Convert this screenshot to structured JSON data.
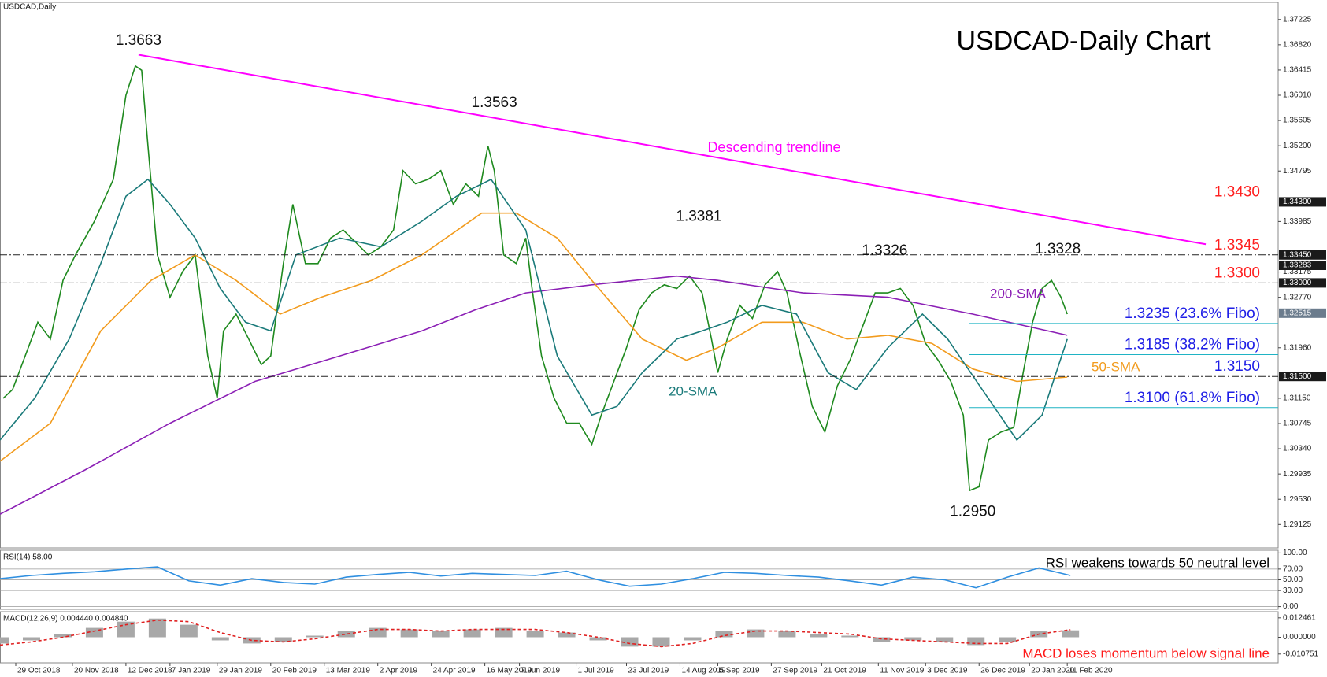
{
  "chart_data": [
    {
      "type": "line",
      "title": "USDCAD-Daily Chart",
      "subtitle": "USDCAD,Daily",
      "xlim": [
        0,
        406
      ],
      "ylim": [
        1.2875,
        1.375
      ],
      "xticks": [
        {
          "value": 5,
          "label": "29 Oct 2018"
        },
        {
          "value": 23,
          "label": "20 Nov 2018"
        },
        {
          "value": 40,
          "label": "12 Dec 2018"
        },
        {
          "value": 54,
          "label": "7 Jan 2019"
        },
        {
          "value": 69,
          "label": "29 Jan 2019"
        },
        {
          "value": 86,
          "label": "20 Feb 2019"
        },
        {
          "value": 103,
          "label": "13 Mar 2019"
        },
        {
          "value": 120,
          "label": "2 Apr 2019"
        },
        {
          "value": 137,
          "label": "24 Apr 2019"
        },
        {
          "value": 154,
          "label": "16 May 2019"
        },
        {
          "value": 165,
          "label": "7 Jun 2019"
        },
        {
          "value": 183,
          "label": "1 Jul 2019"
        },
        {
          "value": 199,
          "label": "23 Jul 2019"
        },
        {
          "value": 216,
          "label": "14 Aug 2019"
        },
        {
          "value": 228,
          "label": "5 Sep 2019"
        },
        {
          "value": 245,
          "label": "27 Sep 2019"
        },
        {
          "value": 261,
          "label": "21 Oct 2019"
        },
        {
          "value": 279,
          "label": "11 Nov 2019"
        },
        {
          "value": 294,
          "label": "3 Dec 2019"
        },
        {
          "value": 311,
          "label": "26 Dec 2019"
        },
        {
          "value": 327,
          "label": "20 Jan 2020"
        },
        {
          "value": 339,
          "label": "11 Feb 2020"
        }
      ],
      "yticks": [
        1.37225,
        {
          "value": 1.3682,
          "label": "1.36820"
        },
        1.36415,
        {
          "value": 1.3601,
          "label": "1.36010"
        },
        1.35605,
        {
          "value": 1.352,
          "label": "1.35200"
        },
        1.34795,
        1.33985,
        1.33175,
        {
          "value": 1.3277,
          "label": "1.32770"
        },
        {
          "value": 1.3196,
          "label": "1.31960"
        },
        {
          "value": 1.3115,
          "label": "1.31150"
        },
        1.30745,
        {
          "value": 1.3034,
          "label": "1.30340"
        },
        1.29935,
        {
          "value": 1.2953,
          "label": "1.29530"
        },
        1.29125
      ],
      "grid": false,
      "series": [
        {
          "color": "#1f8a1f",
          "x": [
            1,
            4,
            8,
            12,
            16,
            20,
            24,
            30,
            36,
            40,
            43,
            45,
            47,
            50,
            54,
            58,
            62,
            66,
            69,
            71,
            75,
            79,
            83,
            86,
            90,
            93,
            97,
            101,
            105,
            109,
            113,
            117,
            121,
            125,
            128,
            132,
            136,
            140,
            144,
            148,
            152,
            155,
            157,
            160,
            164,
            167,
            169,
            172,
            176,
            180,
            184,
            188,
            191,
            195,
            199,
            203,
            207,
            211,
            215,
            219,
            223,
            226,
            228,
            231,
            235,
            239,
            243,
            247,
            250,
            254,
            258,
            262,
            266,
            270,
            274,
            278,
            282,
            286,
            290,
            294,
            298,
            302,
            306,
            308,
            311,
            314,
            318,
            322,
            325,
            328,
            331,
            334,
            337,
            339
          ],
          "values": [
            1.3115,
            1.3129,
            1.3183,
            1.3237,
            1.321,
            1.3304,
            1.3345,
            1.3399,
            1.3466,
            1.3601,
            1.3648,
            1.3641,
            1.352,
            1.3345,
            1.3277,
            1.3318,
            1.3345,
            1.3183,
            1.3115,
            1.3223,
            1.325,
            1.321,
            1.3169,
            1.3183,
            1.3331,
            1.3426,
            1.3331,
            1.3331,
            1.3372,
            1.3385,
            1.3365,
            1.3345,
            1.3358,
            1.3385,
            1.348,
            1.3459,
            1.3466,
            1.348,
            1.3426,
            1.3459,
            1.3439,
            1.352,
            1.348,
            1.3345,
            1.3331,
            1.3372,
            1.3291,
            1.3183,
            1.3115,
            1.3075,
            1.3075,
            1.3041,
            1.3088,
            1.3142,
            1.3196,
            1.3257,
            1.3284,
            1.3297,
            1.3291,
            1.3311,
            1.3284,
            1.321,
            1.3156,
            1.321,
            1.3264,
            1.3243,
            1.3297,
            1.3318,
            1.3284,
            1.3189,
            1.3102,
            1.3061,
            1.3135,
            1.3176,
            1.323,
            1.3284,
            1.3284,
            1.3291,
            1.3264,
            1.3203,
            1.3176,
            1.3142,
            1.3088,
            1.2967,
            1.2973,
            1.3048,
            1.3061,
            1.3068,
            1.3156,
            1.3237,
            1.3291,
            1.3304,
            1.3277,
            1.325
          ]
        },
        {
          "name": "200-SMA",
          "color": "#8b1fb5",
          "x": [
            0,
            27,
            54,
            81,
            108,
            134,
            151,
            167,
            188,
            215,
            228,
            255,
            282,
            309,
            339
          ],
          "values": [
            1.2929,
            1.3,
            1.3075,
            1.3142,
            1.3183,
            1.3223,
            1.3257,
            1.3284,
            1.3297,
            1.3311,
            1.3304,
            1.3284,
            1.3277,
            1.325,
            1.3216
          ]
        },
        {
          "name": "50-SMA",
          "color": "#f29b1d",
          "x": [
            0,
            16,
            32,
            48,
            62,
            75,
            89,
            102,
            118,
            134,
            153,
            164,
            177,
            188,
            204,
            218,
            228,
            242,
            255,
            269,
            282,
            296,
            309,
            323,
            339
          ],
          "values": [
            1.3014,
            1.3075,
            1.3223,
            1.3304,
            1.3345,
            1.3304,
            1.325,
            1.3277,
            1.3304,
            1.3345,
            1.3412,
            1.3412,
            1.3372,
            1.3304,
            1.321,
            1.3176,
            1.3196,
            1.3237,
            1.3237,
            1.321,
            1.3216,
            1.3203,
            1.3162,
            1.3142,
            1.3149
          ]
        },
        {
          "name": "20-SMA",
          "color": "#1a7a7a",
          "x": [
            0,
            11,
            22,
            32,
            40,
            47,
            54,
            62,
            70,
            78,
            86,
            94,
            108,
            121,
            134,
            145,
            156,
            167,
            177,
            188,
            196,
            204,
            215,
            223,
            231,
            242,
            253,
            263,
            272,
            282,
            293,
            301,
            312,
            323,
            331,
            339
          ],
          "values": [
            1.3048,
            1.3115,
            1.321,
            1.3331,
            1.3439,
            1.3466,
            1.3426,
            1.3372,
            1.3291,
            1.3237,
            1.3223,
            1.3345,
            1.3372,
            1.3358,
            1.3399,
            1.3439,
            1.3466,
            1.3385,
            1.3183,
            1.3088,
            1.3102,
            1.3156,
            1.321,
            1.3223,
            1.3237,
            1.3264,
            1.325,
            1.3156,
            1.3129,
            1.3196,
            1.325,
            1.321,
            1.3129,
            1.3048,
            1.3088,
            1.321
          ]
        }
      ],
      "trendline": {
        "label": "Descending trendline",
        "color": "#ff00ff",
        "x": [
          44,
          383
        ],
        "values": [
          1.3666,
          1.3362
        ]
      },
      "levels": [
        {
          "value": 1.343,
          "label": "1.3430",
          "color": "#ff2020",
          "style": "dashdot"
        },
        {
          "value": 1.3345,
          "label": "1.3345",
          "color": "#ff2020",
          "style": "dashdot"
        },
        {
          "value": 1.33,
          "label": "1.3300",
          "color": "#ff2020",
          "style": "dashdot"
        },
        {
          "value": 1.3235,
          "label": "1.3235 (23.6% Fibo)",
          "color": "#1e1ee6",
          "style": "fibo"
        },
        {
          "value": 1.3185,
          "label": "1.3185 (38.2% Fibo)",
          "color": "#1e1ee6",
          "style": "fibo"
        },
        {
          "value": 1.315,
          "label": "1.3150",
          "color": "#1e1ee6",
          "style": "dashdot"
        },
        {
          "value": 1.31,
          "label": "1.3100 (61.8% Fibo)",
          "color": "#1e1ee6",
          "style": "fibo"
        }
      ],
      "axis_markers": [
        {
          "value": 1.343,
          "label": "1.34300"
        },
        {
          "value": 1.3345,
          "label": "1.33450"
        },
        1.33283,
        {
          "value": 1.33,
          "label": "1.33000"
        },
        {
          "value": 1.32515,
          "label": "1.32515",
          "color": "#6b7c8d"
        },
        {
          "value": 1.315,
          "label": "1.31500"
        }
      ],
      "peaks": [
        {
          "x": 44,
          "value": 1.3663
        },
        {
          "x": 157,
          "value": 1.3563
        },
        {
          "x": 222,
          "value": 1.3381
        },
        {
          "x": 281,
          "value": 1.3326
        },
        {
          "x": 336,
          "value": 1.3328
        },
        {
          "x": 309,
          "value": 1.295,
          "label": "1.2950"
        }
      ]
    },
    {
      "type": "line",
      "title": "RSI(14) 58.00",
      "annotation": "RSI weakens towards 50 neutral level",
      "xlim": [
        0,
        406
      ],
      "ylim": [
        -5,
        105
      ],
      "grid": true,
      "yticks": [
        {
          "value": 100,
          "label": "100.00"
        },
        {
          "value": 70,
          "label": "70.00"
        },
        {
          "value": 50,
          "label": "50.00"
        },
        {
          "value": 30,
          "label": "30.00"
        },
        {
          "value": 0,
          "label": "0.00"
        }
      ],
      "series": [
        {
          "color": "#2f8fe0",
          "x": [
            0,
            10,
            20,
            30,
            40,
            50,
            60,
            70,
            80,
            90,
            100,
            110,
            120,
            130,
            140,
            150,
            160,
            170,
            180,
            190,
            200,
            210,
            220,
            230,
            240,
            250,
            260,
            270,
            280,
            290,
            300,
            310,
            320,
            330,
            340
          ],
          "values": [
            52,
            58,
            62,
            65,
            70,
            74,
            48,
            40,
            52,
            45,
            42,
            55,
            60,
            64,
            57,
            62,
            60,
            58,
            66,
            50,
            38,
            42,
            52,
            64,
            62,
            58,
            55,
            48,
            40,
            55,
            50,
            35,
            55,
            72,
            58
          ]
        }
      ]
    },
    {
      "type": "macd",
      "title": "MACD(12,26,9) 0.004440 0.004840",
      "annotation": "MACD loses momentum below signal line",
      "xlim": [
        0,
        406
      ],
      "ylim": [
        -0.0164,
        0.0164
      ],
      "grid": false,
      "yticks": [
        0.012461,
        {
          "value": 0,
          "label": "0.000000"
        },
        -0.010751
      ],
      "series": [
        {
          "type": "bar",
          "color": "#a8a8a8",
          "x": [
            0,
            10,
            20,
            30,
            40,
            50,
            60,
            70,
            80,
            90,
            100,
            110,
            120,
            130,
            140,
            150,
            160,
            170,
            180,
            190,
            200,
            210,
            220,
            230,
            240,
            250,
            260,
            270,
            280,
            290,
            300,
            310,
            320,
            330,
            340
          ],
          "values": [
            -0.004,
            -0.002,
            0.002,
            0.006,
            0.01,
            0.012,
            0.008,
            -0.002,
            -0.004,
            -0.003,
            0.001,
            0.004,
            0.006,
            0.005,
            0.004,
            0.005,
            0.006,
            0.004,
            0.003,
            -0.002,
            -0.006,
            -0.006,
            -0.002,
            0.004,
            0.005,
            0.004,
            0.002,
            0.001,
            -0.003,
            -0.002,
            -0.003,
            -0.005,
            -0.003,
            0.004,
            0.00444
          ]
        },
        {
          "type": "line",
          "color": "#e02020",
          "dash": true,
          "x": [
            0,
            10,
            20,
            30,
            40,
            50,
            60,
            70,
            80,
            90,
            100,
            110,
            120,
            130,
            140,
            150,
            160,
            170,
            180,
            190,
            200,
            210,
            220,
            230,
            240,
            250,
            260,
            270,
            280,
            290,
            300,
            310,
            320,
            330,
            340
          ],
          "values": [
            -0.005,
            -0.003,
            0,
            0.004,
            0.008,
            0.011,
            0.01,
            0.003,
            -0.002,
            -0.003,
            -0.001,
            0.002,
            0.005,
            0.005,
            0.004,
            0.005,
            0.005,
            0.005,
            0.003,
            0,
            -0.004,
            -0.006,
            -0.004,
            0.001,
            0.004,
            0.004,
            0.003,
            0.002,
            -0.001,
            -0.002,
            -0.003,
            -0.004,
            -0.004,
            0.002,
            0.00484
          ]
        }
      ]
    }
  ]
}
